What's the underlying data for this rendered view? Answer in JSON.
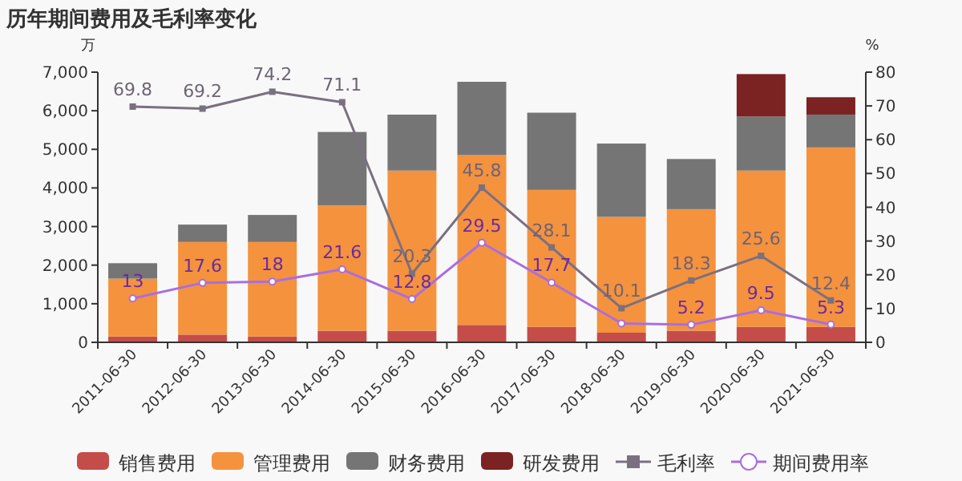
{
  "chart_data": {
    "type": "bar",
    "title": "历年期间费用及毛利率变化",
    "ylabel": "万",
    "y2label": "%",
    "categories": [
      "2011-06-30",
      "2012-06-30",
      "2013-06-30",
      "2014-06-30",
      "2015-06-30",
      "2016-06-30",
      "2017-06-30",
      "2018-06-30",
      "2019-06-30",
      "2020-06-30",
      "2021-06-30"
    ],
    "stacked": true,
    "legend": "bottom",
    "grid": false,
    "ylim": [
      0,
      7000
    ],
    "yticks": [
      0,
      {
        "value": 1000,
        "label": "1,000"
      },
      {
        "value": 2000,
        "label": "2,000"
      },
      {
        "value": 3000,
        "label": "3,000"
      },
      {
        "value": 4000,
        "label": "4,000"
      },
      {
        "value": 5000,
        "label": "5,000"
      },
      {
        "value": 6000,
        "label": "6,000"
      },
      {
        "value": 7000,
        "label": "7,000"
      }
    ],
    "y2lim": [
      0,
      80
    ],
    "y2ticks": [
      0,
      10,
      20,
      30,
      40,
      50,
      60,
      70,
      80
    ],
    "series": [
      {
        "name": "销售费用",
        "color": "#c44d4a",
        "values": [
          150,
          200,
          150,
          300,
          300,
          450,
          400,
          250,
          300,
          400,
          400
        ]
      },
      {
        "name": "管理费用",
        "color": "#f5923e",
        "values": [
          1500,
          2400,
          2450,
          3250,
          4150,
          4400,
          3550,
          3000,
          3150,
          4050,
          4650
        ]
      },
      {
        "name": "财务费用",
        "color": "#757575",
        "values": [
          400,
          450,
          700,
          1900,
          1450,
          1900,
          2000,
          1900,
          1300,
          1400,
          850
        ]
      },
      {
        "name": "研发费用",
        "color": "#7b2222",
        "values": [
          null,
          null,
          null,
          null,
          null,
          null,
          null,
          null,
          null,
          1100,
          450
        ]
      },
      {
        "name": "毛利率",
        "type": "line",
        "axis": "y2",
        "color": "#7a7080",
        "marker": "square",
        "values": [
          69.8,
          69.2,
          74.2,
          71.1,
          20.3,
          45.8,
          28.1,
          10.1,
          18.3,
          25.6,
          12.4
        ],
        "value_labels": [
          "69.8",
          "69.2",
          "74.2",
          "71.1",
          "20.3",
          "45.8",
          "28.1",
          "10.1",
          "18.3",
          "25.6",
          "12.4"
        ]
      },
      {
        "name": "期间费用率",
        "type": "line",
        "axis": "y2",
        "color": "#a86ee0",
        "marker": "circle",
        "values": [
          13,
          17.6,
          18,
          21.6,
          12.8,
          29.5,
          17.7,
          5.6,
          5.2,
          9.5,
          5.3
        ],
        "value_labels": [
          "13",
          "17.6",
          "18",
          "21.6",
          "12.8",
          "29.5",
          "17.7",
          null,
          "5.2",
          "9.5",
          "5.3"
        ]
      }
    ]
  }
}
